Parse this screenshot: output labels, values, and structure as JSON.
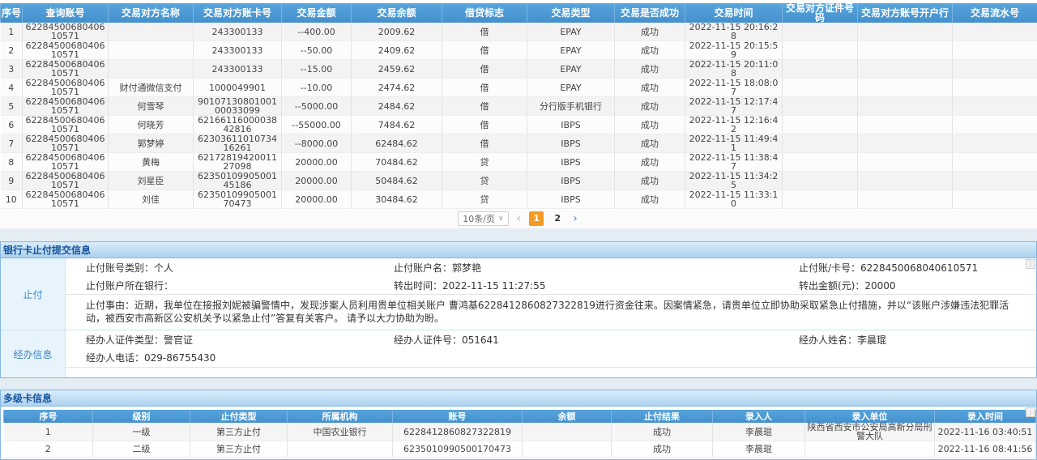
{
  "colors": {
    "header_blue_top": "#58a5dc",
    "header_blue_bottom": "#4390cd",
    "active_page_orange": "#f59a23",
    "section_border_blue": "#86b7e0",
    "section_title_blue": "#17539c",
    "group_label_blue": "#3e86c7"
  },
  "transactions_table": {
    "columns": [
      "序号",
      "查询账号",
      "交易对方名称",
      "交易对方账卡号",
      "交易金额",
      "交易余额",
      "借贷标志",
      "交易类型",
      "交易是否成功",
      "交易时间",
      "交易对方证件号码",
      "交易对方账号开户行",
      "交易流水号"
    ],
    "rows": [
      [
        "1",
        "6228450068040610571",
        "",
        "243300133",
        "--400.00",
        "2009.62",
        "借",
        "EPAY",
        "成功",
        "2022-11-15 20:16:28",
        "",
        "",
        ""
      ],
      [
        "2",
        "6228450068040610571",
        "",
        "243300133",
        "--50.00",
        "2409.62",
        "借",
        "EPAY",
        "成功",
        "2022-11-15 20:15:59",
        "",
        "",
        ""
      ],
      [
        "3",
        "6228450068040610571",
        "",
        "243300133",
        "--15.00",
        "2459.62",
        "借",
        "EPAY",
        "成功",
        "2022-11-15 20:11:08",
        "",
        "",
        ""
      ],
      [
        "4",
        "6228450068040610571",
        "财付通微信支付",
        "1000049901",
        "--10.00",
        "2474.62",
        "借",
        "EPAY",
        "成功",
        "2022-11-15 18:08:07",
        "",
        "",
        ""
      ],
      [
        "5",
        "6228450068040610571",
        "何雪琴",
        "9010713080100100033099",
        "--5000.00",
        "2484.62",
        "借",
        "分行版手机银行",
        "成功",
        "2022-11-15 12:17:47",
        "",
        "",
        ""
      ],
      [
        "6",
        "6228450068040610571",
        "何晓芳",
        "6216611600003842816",
        "--55000.00",
        "7484.62",
        "借",
        "IBPS",
        "成功",
        "2022-11-15 12:16:42",
        "",
        "",
        ""
      ],
      [
        "7",
        "6228450068040610571",
        "郭梦婷",
        "6230361101073416261",
        "--8000.00",
        "62484.62",
        "借",
        "IBPS",
        "成功",
        "2022-11-15 11:49:41",
        "",
        "",
        ""
      ],
      [
        "8",
        "6228450068040610571",
        "黄梅",
        "6217281942001127098",
        "20000.00",
        "70484.62",
        "贷",
        "IBPS",
        "成功",
        "2022-11-15 11:38:47",
        "",
        "",
        ""
      ],
      [
        "9",
        "6228450068040610571",
        "刘星臣",
        "6235010990500145186",
        "20000.00",
        "50484.62",
        "贷",
        "IBPS",
        "成功",
        "2022-11-15 11:34:25",
        "",
        "",
        ""
      ],
      [
        "10",
        "6228450068040610571",
        "刘佳",
        "6235010990500170473",
        "20000.00",
        "30484.62",
        "贷",
        "IBPS",
        "成功",
        "2022-11-15 11:33:10",
        "",
        "",
        ""
      ]
    ]
  },
  "pagination": {
    "page_size": "10条/页",
    "prev": "‹",
    "pages": [
      "1",
      "2"
    ],
    "active_page": "1",
    "next": "›"
  },
  "stop_payment": {
    "title": "银行卡止付提交信息",
    "group1_label": "止付",
    "fields_row1": [
      "止付账号类别：个人",
      "止付账户名：郭梦艳",
      "止付账/卡号：6228450068040610571"
    ],
    "fields_row2": [
      "止付账户所在银行：",
      "转出时间：2022-11-15 11:27:55",
      "转出金额(元)：20000"
    ],
    "reason": "止付事由：近期，我单位在接报刘妮被骗警情中，发现涉案人员利用贵单位相关账户 曹鸿基6228412860827322819进行资金往来。因案情紧急，请贵单位立即协助采取紧急止付措施，并以“该账户涉嫌违法犯罪活动，被西安市高新区公安机关予以紧急止付”答复有关客户。 请予以大力协助为盼。",
    "group2_label": "经办信息",
    "jb_row1": [
      "经办人证件类型：警官证",
      "经办人证件号：051641",
      "经办人姓名：李晨琨"
    ],
    "jb_row2": [
      "经办人电话：029-86755430"
    ]
  },
  "multi_card": {
    "title": "多级卡信息",
    "columns": [
      "序号",
      "级别",
      "止付类型",
      "所属机构",
      "账号",
      "余额",
      "止付结果",
      "录入人",
      "录入单位",
      "录入时间"
    ],
    "rows": [
      [
        "1",
        "一级",
        "第三方止付",
        "中国农业银行",
        "6228412860827322819",
        "",
        "成功",
        "李晨琨",
        "陕西省西安市公安局高新分局刑警大队",
        "2022-11-16 03:40:51"
      ],
      [
        "2",
        "二级",
        "第三方止付",
        "",
        "6235010990500170473",
        "",
        "成功",
        "李晨琨",
        "",
        "2022-11-16 08:41:56"
      ]
    ]
  }
}
